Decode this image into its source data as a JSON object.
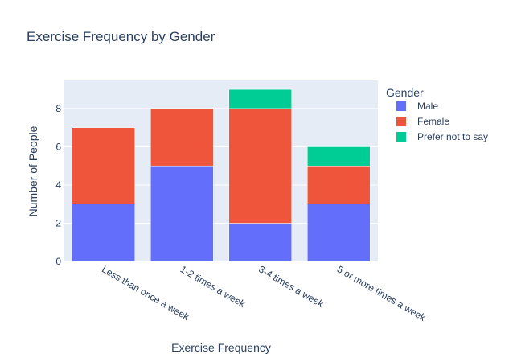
{
  "chart_data": {
    "type": "bar",
    "barmode": "stack",
    "title": "Exercise Frequency by Gender",
    "xlabel": "Exercise Frequency",
    "ylabel": "Number of People",
    "categories": [
      "Less than once a week",
      "1-2 times a week",
      "3-4 times a week",
      "5 or more times a week"
    ],
    "series": [
      {
        "name": "Male",
        "values": [
          3,
          5,
          2,
          3
        ],
        "color": "#636efa"
      },
      {
        "name": "Female",
        "values": [
          4,
          3,
          6,
          2
        ],
        "color": "#ef553b"
      },
      {
        "name": "Prefer not to say",
        "values": [
          0,
          0,
          1,
          1
        ],
        "color": "#00cc96"
      }
    ],
    "ylim": [
      0,
      9.47
    ],
    "yticks": [
      0,
      2,
      4,
      6,
      8
    ],
    "legend": {
      "title": "Gender",
      "placement": "top-right"
    },
    "grid": true,
    "colors": {
      "plot_background": "#e5ecf6",
      "gridline": "#ffffff",
      "text": "#2a3f5f"
    }
  }
}
